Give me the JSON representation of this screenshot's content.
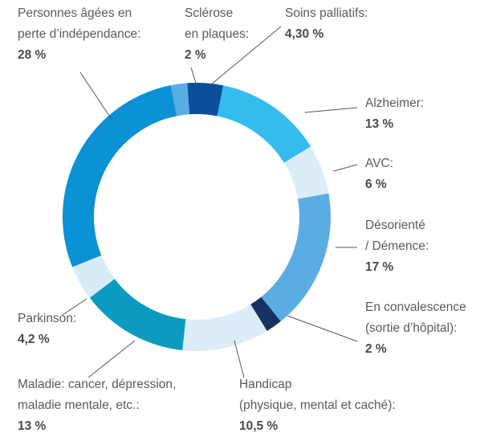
{
  "chart_data": {
    "type": "pie",
    "donut": true,
    "categories": [
      "Soins palliatifs:",
      "Alzheimer:",
      "AVC:",
      "Désorienté\n/ Démence:",
      "En convalescence\n(sortie d’hôpital):",
      "Handicap\n(physique, mental et caché):",
      "Maladie: cancer, dépression,\nmaladie mentale, etc.:",
      "Parkinson:",
      "Personnes âgées en\nperte d’indépendance:",
      "Sclérose\nen plaques:"
    ],
    "values": [
      4.3,
      13,
      6,
      17,
      2,
      10.5,
      13,
      4.2,
      28,
      2
    ],
    "value_labels": [
      "4,30 %",
      "13 %",
      "6 %",
      "17 %",
      "2 %",
      "10,5 %",
      "13 %",
      "4,2 %",
      "28 %",
      "2 %"
    ],
    "colors": [
      "#0a4f9c",
      "#35bcee",
      "#dcedf8",
      "#5aade2",
      "#17325e",
      "#dcedf8",
      "#0c9bc0",
      "#d7ebf8",
      "#0a91d6",
      "#5aade2"
    ]
  }
}
